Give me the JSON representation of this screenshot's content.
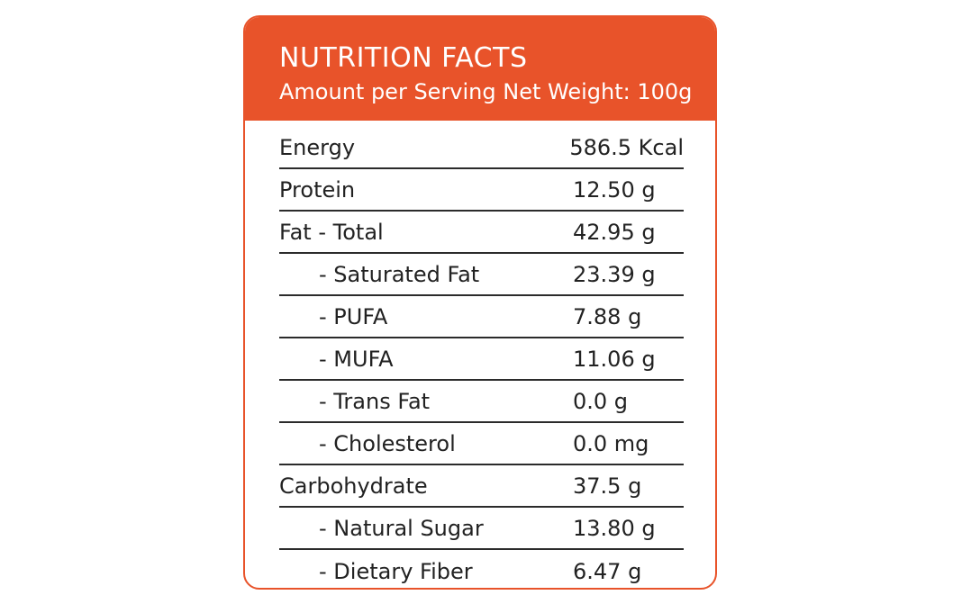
{
  "header": {
    "title": "NUTRITION FACTS",
    "subtitle": "Amount per Serving Net Weight: 100g"
  },
  "rows": [
    {
      "label": "Energy",
      "value": "586.5 Kcal"
    },
    {
      "label": "Protein",
      "value": "12.50 g"
    },
    {
      "label": "Fat - Total",
      "value": "42.95 g"
    },
    {
      "label": "- Saturated Fat",
      "value": "23.39 g"
    },
    {
      "label": "- PUFA",
      "value": "7.88 g"
    },
    {
      "label": "- MUFA",
      "value": "11.06 g"
    },
    {
      "label": "- Trans Fat",
      "value": "0.0 g"
    },
    {
      "label": "- Cholesterol",
      "value": "0.0 mg"
    },
    {
      "label": "Carbohydrate",
      "value": "37.5 g"
    },
    {
      "label": "- Natural Sugar",
      "value": "13.80 g"
    },
    {
      "label": "- Dietary Fiber",
      "value": "6.47 g"
    }
  ],
  "colors": {
    "accent": "#e8532a",
    "text": "#222222",
    "rule": "#2b2b2b"
  }
}
